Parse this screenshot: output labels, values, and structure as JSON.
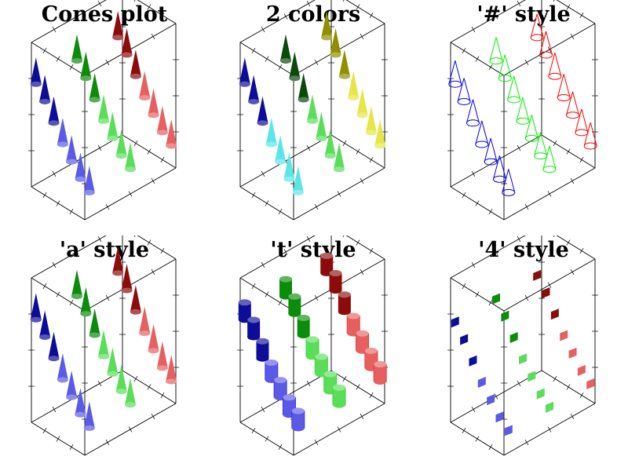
{
  "colors": {
    "blue": "#0d0d99",
    "blue_light": "#5a5ae6",
    "green": "#0b8c0b",
    "green_light": "#5ade5a",
    "red": "#8c0b0b",
    "red_light": "#e66060",
    "dark_green": "#0b4a0b",
    "dark_yellow": "#8f8f00",
    "yellow_light": "#e6e64a",
    "cyan": "#1a9ba8",
    "cyan_light": "#5ae6e6",
    "wire_blue": "#0000ff",
    "wire_green": "#00ee00",
    "wire_red": "#ff0000"
  },
  "chart_data": [
    {
      "type": "cones",
      "title": "Cones plot",
      "style": "default",
      "series": [
        {
          "color": "blue",
          "values": [
            0.35,
            0.2,
            0.0,
            -0.2,
            -0.35,
            -0.5,
            -0.6
          ]
        },
        {
          "color": "green",
          "values": [
            0.35,
            0.2,
            0.0,
            -0.2,
            -0.35,
            -0.5,
            -0.6
          ]
        },
        {
          "color": "red",
          "values": [
            0.35,
            0.2,
            0.0,
            -0.2,
            -0.35,
            -0.5,
            -0.6
          ]
        }
      ]
    },
    {
      "type": "cones",
      "title": "2 colors",
      "style": "two-color",
      "series": [
        {
          "color": "blue",
          "values": [
            0.35,
            0.2,
            0.0,
            -0.2,
            -0.35,
            -0.5,
            -0.6
          ]
        },
        {
          "color": "green",
          "values": [
            0.35,
            0.2,
            0.0,
            -0.2,
            -0.35,
            -0.5,
            -0.6
          ]
        },
        {
          "color": "yellow",
          "values": [
            0.35,
            0.2,
            0.0,
            -0.2,
            -0.35,
            -0.5,
            -0.6
          ]
        }
      ]
    },
    {
      "type": "cones",
      "title": "'#' style",
      "style": "wire",
      "series": [
        {
          "color": "blue",
          "values": [
            0.35,
            0.2,
            0.0,
            -0.2,
            -0.35,
            -0.5,
            -0.6
          ]
        },
        {
          "color": "green",
          "values": [
            0.35,
            0.2,
            0.0,
            -0.2,
            -0.35,
            -0.5,
            -0.6
          ]
        },
        {
          "color": "red",
          "values": [
            0.35,
            0.2,
            0.0,
            -0.2,
            -0.35,
            -0.5,
            -0.6
          ]
        }
      ]
    },
    {
      "type": "cones",
      "title": "'a' style",
      "style": "above",
      "series": [
        {
          "color": "blue",
          "values": [
            0.35,
            0.2,
            0.0,
            -0.2,
            -0.35,
            -0.5,
            -0.6
          ]
        },
        {
          "color": "green",
          "values": [
            0.35,
            0.2,
            0.0,
            -0.2,
            -0.35,
            -0.5,
            -0.6
          ]
        },
        {
          "color": "red",
          "values": [
            0.35,
            0.2,
            0.0,
            -0.2,
            -0.35,
            -0.5,
            -0.6
          ]
        }
      ]
    },
    {
      "type": "cones",
      "title": "'t' style",
      "style": "cylinder",
      "series": [
        {
          "color": "blue",
          "values": [
            0.35,
            0.2,
            0.0,
            -0.2,
            -0.35,
            -0.5,
            -0.6
          ]
        },
        {
          "color": "green",
          "values": [
            0.35,
            0.2,
            0.0,
            -0.2,
            -0.35,
            -0.5,
            -0.6
          ]
        },
        {
          "color": "red",
          "values": [
            0.35,
            0.2,
            0.0,
            -0.2,
            -0.35,
            -0.5,
            -0.6
          ]
        }
      ]
    },
    {
      "type": "cones",
      "title": "'4' style",
      "style": "square",
      "series": [
        {
          "color": "blue",
          "values": [
            0.35,
            0.2,
            0.0,
            -0.2,
            -0.35,
            -0.5,
            -0.6
          ]
        },
        {
          "color": "green",
          "values": [
            0.35,
            0.2,
            0.0,
            -0.2,
            -0.35,
            -0.5,
            -0.6
          ]
        },
        {
          "color": "red",
          "values": [
            0.35,
            0.2,
            0.0,
            -0.2,
            -0.35,
            -0.5,
            -0.6
          ]
        }
      ]
    }
  ]
}
